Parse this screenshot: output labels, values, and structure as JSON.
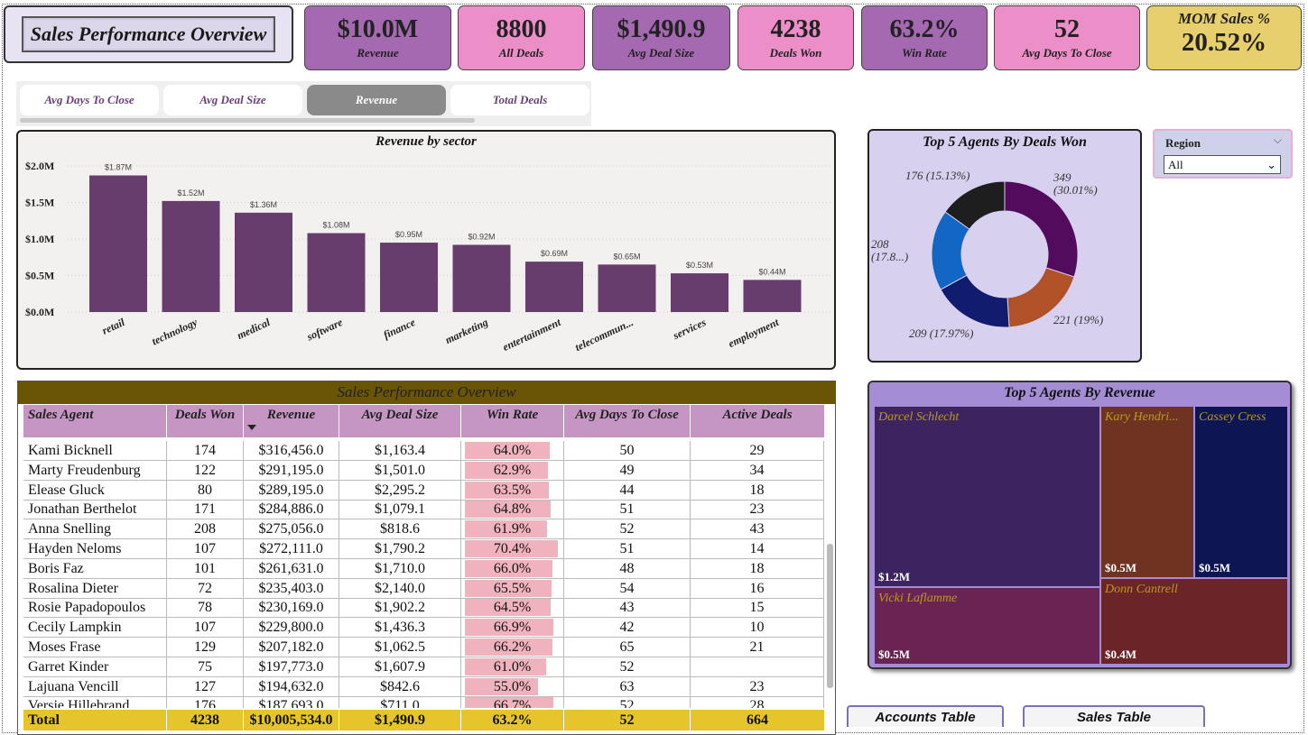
{
  "title": "Sales Performance Overview",
  "kpis": [
    {
      "value": "$10.0M",
      "label": "Revenue"
    },
    {
      "value": "8800",
      "label": "All Deals"
    },
    {
      "value": "$1,490.9",
      "label": "Avg Deal Size"
    },
    {
      "value": "4238",
      "label": "Deals Won"
    },
    {
      "value": "63.2%",
      "label": "Win Rate"
    },
    {
      "value": "52",
      "label": "Avg Days To Close"
    }
  ],
  "mom": {
    "label": "MOM Sales %",
    "value": "20.52%"
  },
  "tabs": [
    {
      "label": "Avg Days To Close"
    },
    {
      "label": "Avg Deal Size"
    },
    {
      "label": "Revenue"
    },
    {
      "label": "Total Deals"
    }
  ],
  "chart_data": {
    "type": "bar",
    "title": "Revenue by sector",
    "categories": [
      "retail",
      "technology",
      "medical",
      "software",
      "finance",
      "marketing",
      "entertainment",
      "telecommun...",
      "services",
      "employment"
    ],
    "values": [
      1.87,
      1.52,
      1.36,
      1.08,
      0.95,
      0.92,
      0.69,
      0.65,
      0.53,
      0.44
    ],
    "data_labels": [
      "$1.87M",
      "$1.52M",
      "$1.36M",
      "$1.08M",
      "$0.95M",
      "$0.92M",
      "$0.69M",
      "$0.65M",
      "$0.53M",
      "$0.44M"
    ],
    "yticks": [
      0,
      0.5,
      1.0,
      1.5,
      2.0
    ],
    "ytick_labels": [
      "$0.0M",
      "$0.5M",
      "$1.0M",
      "$1.5M",
      "$2.0M"
    ],
    "ylim": [
      0,
      2.0
    ],
    "grid": true,
    "bar_color": "#663d6c"
  },
  "donut": {
    "title": "Top 5 Agents By Deals Won",
    "slices": [
      {
        "value": 349,
        "label": "349\n(30.01%)",
        "color": "#530b5e"
      },
      {
        "value": 221,
        "label": "221 (19%)",
        "color": "#b05127"
      },
      {
        "value": 209,
        "label": "209 (17.97%)",
        "color": "#121c6e"
      },
      {
        "value": 208,
        "label": "208\n(17.8...)",
        "color": "#1266c4"
      },
      {
        "value": 176,
        "label": "176 (15.13%)",
        "color": "#1e1e1e"
      }
    ]
  },
  "region": {
    "label": "Region",
    "value": "All"
  },
  "table": {
    "title": "Sales Performance Overview",
    "columns": [
      "Sales Agent",
      "Deals Won",
      "Revenue",
      "Avg Deal Size",
      "Win Rate",
      "Avg Days To Close",
      "Active Deals"
    ],
    "rows": [
      {
        "agent": "Kami Bicknell",
        "won": "174",
        "revenue": "$316,456.0",
        "avg": "$1,163.4",
        "win": "64.0%",
        "winv": 0.64,
        "days": "50",
        "active": "29"
      },
      {
        "agent": "Marty Freudenburg",
        "won": "122",
        "revenue": "$291,195.0",
        "avg": "$1,501.0",
        "win": "62.9%",
        "winv": 0.629,
        "days": "49",
        "active": "34"
      },
      {
        "agent": "Elease Gluck",
        "won": "80",
        "revenue": "$289,195.0",
        "avg": "$2,295.2",
        "win": "63.5%",
        "winv": 0.635,
        "days": "44",
        "active": "18"
      },
      {
        "agent": "Jonathan Berthelot",
        "won": "171",
        "revenue": "$284,886.0",
        "avg": "$1,079.1",
        "win": "64.8%",
        "winv": 0.648,
        "days": "51",
        "active": "23"
      },
      {
        "agent": "Anna Snelling",
        "won": "208",
        "revenue": "$275,056.0",
        "avg": "$818.6",
        "win": "61.9%",
        "winv": 0.619,
        "days": "52",
        "active": "43"
      },
      {
        "agent": "Hayden Neloms",
        "won": "107",
        "revenue": "$272,111.0",
        "avg": "$1,790.2",
        "win": "70.4%",
        "winv": 0.704,
        "days": "51",
        "active": "14"
      },
      {
        "agent": "Boris Faz",
        "won": "101",
        "revenue": "$261,631.0",
        "avg": "$1,710.0",
        "win": "66.0%",
        "winv": 0.66,
        "days": "48",
        "active": "18"
      },
      {
        "agent": "Rosalina Dieter",
        "won": "72",
        "revenue": "$235,403.0",
        "avg": "$2,140.0",
        "win": "65.5%",
        "winv": 0.655,
        "days": "54",
        "active": "16"
      },
      {
        "agent": "Rosie Papadopoulos",
        "won": "78",
        "revenue": "$230,169.0",
        "avg": "$1,902.2",
        "win": "64.5%",
        "winv": 0.645,
        "days": "43",
        "active": "15"
      },
      {
        "agent": "Cecily Lampkin",
        "won": "107",
        "revenue": "$229,800.0",
        "avg": "$1,436.3",
        "win": "66.9%",
        "winv": 0.669,
        "days": "42",
        "active": "10"
      },
      {
        "agent": "Moses Frase",
        "won": "129",
        "revenue": "$207,182.0",
        "avg": "$1,062.5",
        "win": "66.2%",
        "winv": 0.662,
        "days": "65",
        "active": "21"
      },
      {
        "agent": "Garret Kinder",
        "won": "75",
        "revenue": "$197,773.0",
        "avg": "$1,607.9",
        "win": "61.0%",
        "winv": 0.61,
        "days": "52",
        "active": ""
      },
      {
        "agent": "Lajuana Vencill",
        "won": "127",
        "revenue": "$194,632.0",
        "avg": "$842.6",
        "win": "55.0%",
        "winv": 0.55,
        "days": "63",
        "active": "23"
      },
      {
        "agent": "Versie Hillebrand",
        "won": "176",
        "revenue": "$187,693.0",
        "avg": "$711.0",
        "win": "66.7%",
        "winv": 0.667,
        "days": "52",
        "active": "28"
      }
    ],
    "total": {
      "agent": "Total",
      "won": "4238",
      "revenue": "$10,005,534.0",
      "avg": "$1,490.9",
      "win": "63.2%",
      "days": "52",
      "active": "664"
    }
  },
  "treemap": {
    "title": "Top 5 Agents By Revenue",
    "tiles": [
      {
        "name": "Darcel Schlecht",
        "value": "$1.2M",
        "color": "#3d2460"
      },
      {
        "name": "Kary Hendri...",
        "value": "$0.5M",
        "color": "#6f3322"
      },
      {
        "name": "Cassey Cress",
        "value": "$0.5M",
        "color": "#0d1552"
      },
      {
        "name": "Vicki Laflamme",
        "value": "$0.5M",
        "color": "#6a2453"
      },
      {
        "name": "Donn Cantrell",
        "value": "$0.4M",
        "color": "#6b2428"
      }
    ]
  },
  "nav": {
    "accounts": "Accounts Table",
    "sales": "Sales Table"
  }
}
